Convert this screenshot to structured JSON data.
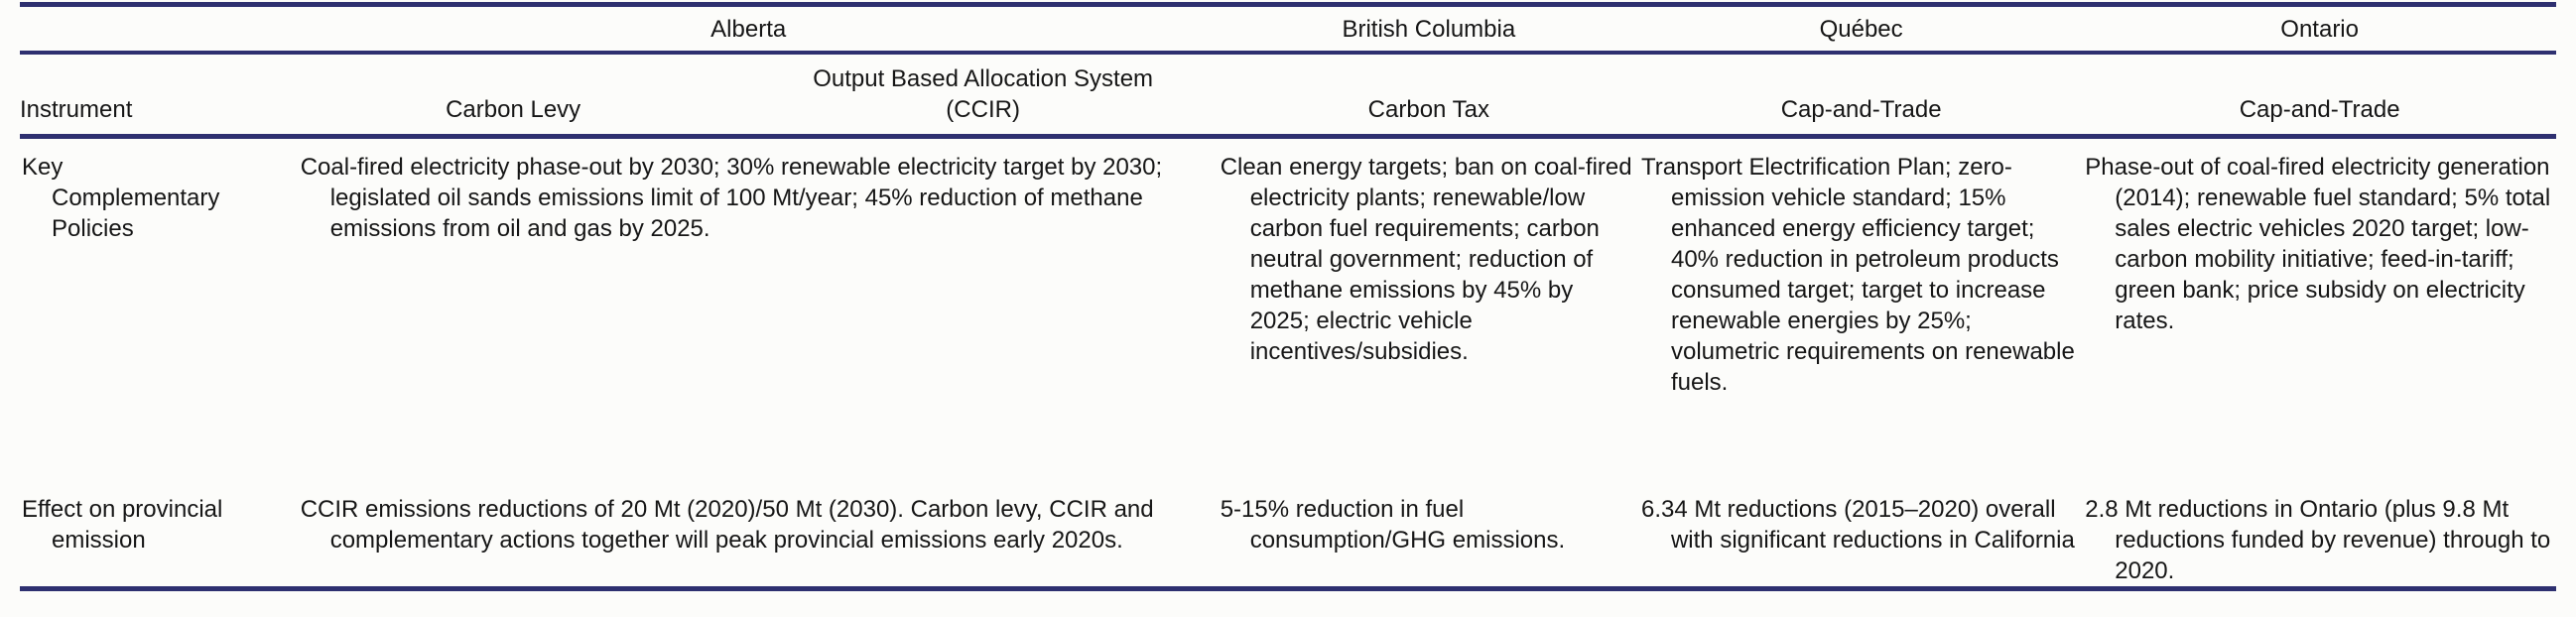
{
  "colors": {
    "rule": "#2e3070",
    "text": "#161616",
    "background": "#fcfcfa"
  },
  "table": {
    "provinces": [
      {
        "label": "Alberta"
      },
      {
        "label": "British Columbia"
      },
      {
        "label": "Québec"
      },
      {
        "label": "Ontario"
      }
    ],
    "instrument_column_header": "Instrument",
    "instruments": [
      {
        "label": "Carbon Levy"
      },
      {
        "label": "Output Based Allocation System",
        "label2": "(CCIR)"
      },
      {
        "label": "Carbon Tax"
      },
      {
        "label": "Cap-and-Trade"
      },
      {
        "label": "Cap-and-Trade"
      }
    ],
    "rows": [
      {
        "label": "Key Complementary Policies",
        "alberta": "Coal-fired electricity phase-out by 2030; 30% renewable electricity target by 2030; legislated oil sands emissions limit of 100 Mt/year; 45% reduction of methane emissions from oil and gas by 2025.",
        "british_columbia": "Clean energy targets; ban on coal-fired electricity plants; renewable/low carbon fuel requirements; carbon neutral government; reduction of methane emissions by 45% by 2025; electric vehicle incentives/subsidies.",
        "quebec": "Transport Electrification Plan; zero-emission vehicle standard; 15% enhanced energy efficiency target; 40% reduction in petroleum products consumed target; target to increase renewable energies by 25%; volumetric requirements on renewable fuels.",
        "ontario": "Phase-out of coal-fired electricity generation (2014); renewable fuel standard; 5% total sales electric vehicles 2020 target; low-carbon mobility initiative; feed-in-tariff; green bank; price subsidy on electricity rates."
      },
      {
        "label": "Effect on provincial emission",
        "alberta": "CCIR emissions reductions of 20 Mt (2020)/50 Mt (2030). Carbon levy, CCIR and complementary actions together will peak provincial emissions early 2020s.",
        "british_columbia": "5-15% reduction in fuel consumption/GHG emissions.",
        "quebec": "6.34 Mt reductions (2015–2020) overall with significant reductions in California",
        "ontario": "2.8 Mt reductions in Ontario (plus 9.8 Mt reductions funded by revenue) through to 2020."
      }
    ]
  }
}
